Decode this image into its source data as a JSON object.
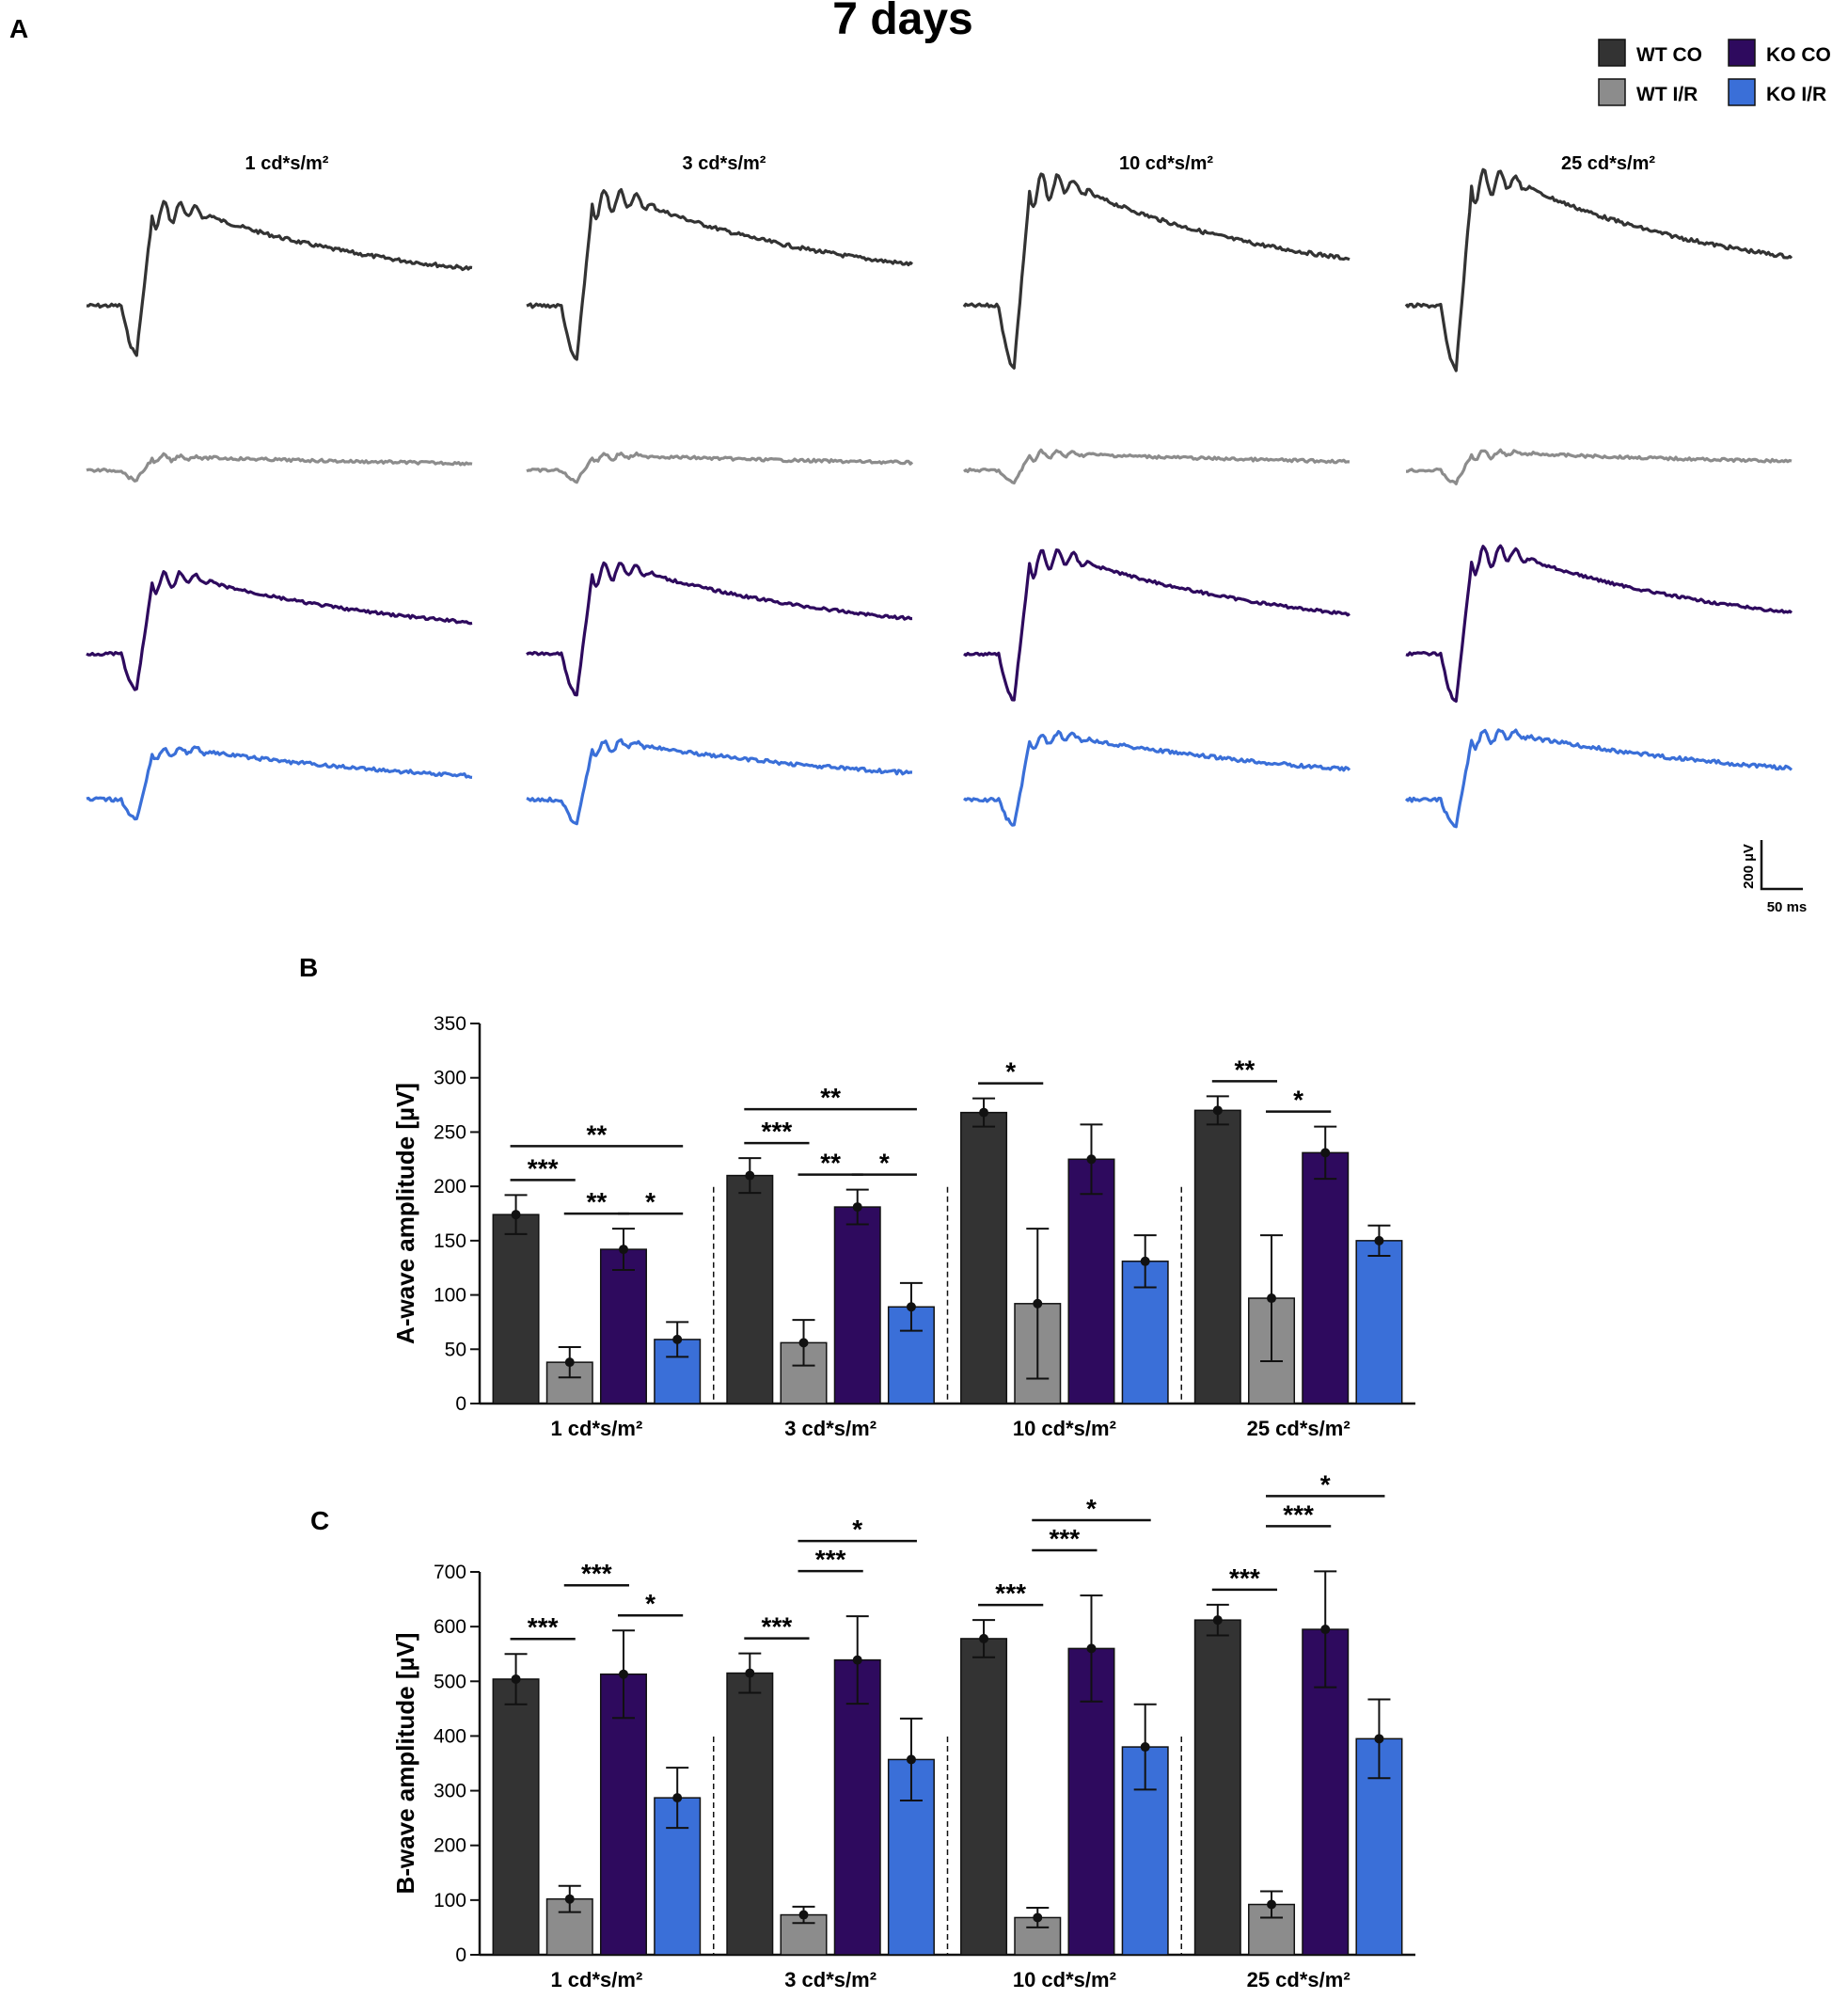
{
  "title": "7 days",
  "panel_labels": {
    "a": "A",
    "b": "B",
    "c": "C"
  },
  "legend": [
    {
      "label": "WT CO",
      "color": "#333333"
    },
    {
      "label": "KO CO",
      "color": "#2e0a5e"
    },
    {
      "label": "WT I/R",
      "color": "#8c8c8c"
    },
    {
      "label": "KO I/R",
      "color": "#3a6fd8"
    }
  ],
  "intensities": [
    "1 cd*s/m²",
    "3 cd*s/m²",
    "10 cd*s/m²",
    "25 cd*s/m²"
  ],
  "scale_bar": {
    "vertical": "200 µV",
    "horizontal": "50 ms"
  },
  "trace_rows": [
    "WT CO",
    "WT I/R",
    "KO CO",
    "KO I/R"
  ],
  "chart_data": [
    {
      "id": "B",
      "type": "bar",
      "title": "",
      "xlabel": "",
      "ylabel": "A-wave amplitude [µV]",
      "ylim": [
        0,
        350
      ],
      "yticks": [
        0,
        50,
        100,
        150,
        200,
        250,
        300,
        350
      ],
      "categories": [
        "1 cd*s/m²",
        "3 cd*s/m²",
        "10 cd*s/m²",
        "25 cd*s/m²"
      ],
      "series": [
        {
          "name": "WT CO",
          "values": [
            174,
            210,
            268,
            270
          ],
          "errors": [
            18,
            16,
            13,
            13
          ]
        },
        {
          "name": "WT I/R",
          "values": [
            38,
            56,
            92,
            97
          ],
          "errors": [
            14,
            21,
            69,
            58
          ]
        },
        {
          "name": "KO CO",
          "values": [
            142,
            181,
            225,
            231
          ],
          "errors": [
            19,
            16,
            32,
            24
          ]
        },
        {
          "name": "KO I/R",
          "values": [
            59,
            89,
            131,
            150
          ],
          "errors": [
            16,
            22,
            24,
            14
          ]
        }
      ],
      "significance": [
        {
          "group": 0,
          "from": 0,
          "to": 1,
          "label": "***",
          "level": 0
        },
        {
          "group": 0,
          "from": 1,
          "to": 2,
          "label": "**",
          "level": 0
        },
        {
          "group": 0,
          "from": 2,
          "to": 3,
          "label": "*",
          "level": 0
        },
        {
          "group": 0,
          "from": 0,
          "to": 3,
          "label": "**",
          "level": 1
        },
        {
          "group": 1,
          "from": 0,
          "to": 1,
          "label": "***",
          "level": 0
        },
        {
          "group": 1,
          "from": 1,
          "to": 2,
          "label": "**",
          "level": 0
        },
        {
          "group": 1,
          "from": 2,
          "to": 3,
          "label": "*",
          "level": 0
        },
        {
          "group": 1,
          "from": 0,
          "to": 3,
          "label": "**",
          "level": 1
        },
        {
          "group": 2,
          "from": 0,
          "to": 1,
          "label": "*",
          "level": 0
        },
        {
          "group": 3,
          "from": 0,
          "to": 1,
          "label": "**",
          "level": 0
        },
        {
          "group": 3,
          "from": 1,
          "to": 2,
          "label": "*",
          "level": 0
        }
      ]
    },
    {
      "id": "C",
      "type": "bar",
      "title": "",
      "xlabel": "",
      "ylabel": "B-wave amplitude [µV]",
      "ylim": [
        0,
        700
      ],
      "yticks": [
        0,
        100,
        200,
        300,
        400,
        500,
        600,
        700
      ],
      "categories": [
        "1 cd*s/m²",
        "3 cd*s/m²",
        "10 cd*s/m²",
        "25 cd*s/m²"
      ],
      "series": [
        {
          "name": "WT CO",
          "values": [
            504,
            515,
            578,
            612
          ],
          "errors": [
            46,
            36,
            34,
            28
          ]
        },
        {
          "name": "WT I/R",
          "values": [
            102,
            73,
            68,
            92
          ],
          "errors": [
            24,
            15,
            18,
            24
          ]
        },
        {
          "name": "KO CO",
          "values": [
            513,
            539,
            560,
            595
          ],
          "errors": [
            80,
            80,
            97,
            106
          ]
        },
        {
          "name": "KO I/R",
          "values": [
            287,
            357,
            380,
            395
          ],
          "errors": [
            55,
            75,
            78,
            72
          ]
        }
      ],
      "significance": [
        {
          "group": 0,
          "from": 0,
          "to": 1,
          "label": "***",
          "level": 0
        },
        {
          "group": 0,
          "from": 1,
          "to": 2,
          "label": "***",
          "level": 1
        },
        {
          "group": 0,
          "from": 2,
          "to": 3,
          "label": "*",
          "level": 0
        },
        {
          "group": 1,
          "from": 0,
          "to": 1,
          "label": "***",
          "level": 0
        },
        {
          "group": 1,
          "from": 1,
          "to": 2,
          "label": "***",
          "level": 1
        },
        {
          "group": 1,
          "from": 1,
          "to": 3,
          "label": "*",
          "level": 2
        },
        {
          "group": 2,
          "from": 0,
          "to": 1,
          "label": "***",
          "level": 0
        },
        {
          "group": 2,
          "from": 1,
          "to": 2,
          "label": "***",
          "level": 1
        },
        {
          "group": 2,
          "from": 1,
          "to": 3,
          "label": "*",
          "level": 2
        },
        {
          "group": 3,
          "from": 0,
          "to": 1,
          "label": "***",
          "level": 0
        },
        {
          "group": 3,
          "from": 1,
          "to": 2,
          "label": "***",
          "level": 1
        },
        {
          "group": 3,
          "from": 1,
          "to": 3,
          "label": "*",
          "level": 2
        }
      ]
    }
  ]
}
